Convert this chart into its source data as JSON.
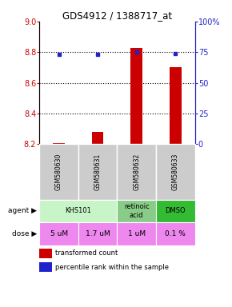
{
  "title": "GDS4912 / 1388717_at",
  "samples": [
    "GSM580630",
    "GSM580631",
    "GSM580632",
    "GSM580633"
  ],
  "bar_values": [
    8.21,
    8.28,
    8.83,
    8.7
  ],
  "bar_baseline": 8.2,
  "dot_values": [
    73,
    73,
    75,
    74
  ],
  "left_ylim": [
    8.2,
    9.0
  ],
  "right_ylim": [
    0,
    100
  ],
  "left_yticks": [
    8.2,
    8.4,
    8.6,
    8.8,
    9.0
  ],
  "right_yticks": [
    0,
    25,
    50,
    75,
    100
  ],
  "right_yticklabels": [
    "0",
    "25",
    "50",
    "75",
    "100%"
  ],
  "hlines": [
    8.4,
    8.6,
    8.8
  ],
  "bar_color": "#cc0000",
  "dot_color": "#2222cc",
  "agent_spans": [
    [
      0,
      2,
      "KHS101",
      "#c8f5c8"
    ],
    [
      2,
      3,
      "retinoic\nacid",
      "#88cc88"
    ],
    [
      3,
      4,
      "DMSO",
      "#33bb33"
    ]
  ],
  "dose_labels": [
    "5 uM",
    "1.7 uM",
    "1 uM",
    "0.1 %"
  ],
  "dose_color": "#ee88ee",
  "sample_bg": "#cccccc",
  "legend_red_label": "transformed count",
  "legend_blue_label": "percentile rank within the sample"
}
